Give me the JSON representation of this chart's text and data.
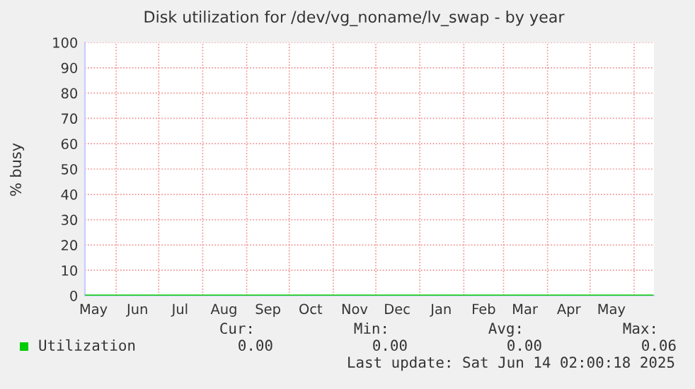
{
  "chart_data": {
    "type": "line",
    "title": "Disk utilization for /dev/vg_noname/lv_swap - by year",
    "ylabel": "% busy",
    "x": [
      "2024-05-10",
      "2024-08-01",
      "2024-11-01",
      "2025-02-01",
      "2025-05-01",
      "2025-06-14"
    ],
    "series": [
      {
        "name": "Utilization",
        "color": "#00cc00",
        "values": [
          0,
          0,
          0,
          0,
          0,
          0
        ]
      }
    ],
    "xlim": [
      "2024-05-10",
      "2025-06-15"
    ],
    "xticks": [
      {
        "value": "2024-05-16",
        "label": "May"
      },
      {
        "value": "2024-06-16",
        "label": "Jun"
      },
      {
        "value": "2024-07-16",
        "label": "Jul"
      },
      {
        "value": "2024-08-16",
        "label": "Aug"
      },
      {
        "value": "2024-09-16",
        "label": "Sep"
      },
      {
        "value": "2024-10-16",
        "label": "Oct"
      },
      {
        "value": "2024-11-16",
        "label": "Nov"
      },
      {
        "value": "2024-12-16",
        "label": "Dec"
      },
      {
        "value": "2025-01-16",
        "label": "Jan"
      },
      {
        "value": "2025-02-15",
        "label": "Feb"
      },
      {
        "value": "2025-03-16",
        "label": "Mar"
      },
      {
        "value": "2025-04-16",
        "label": "Apr"
      },
      {
        "value": "2025-05-16",
        "label": "May"
      },
      {
        "value": "2024-06-01",
        "label": null
      },
      {
        "value": "2024-07-01",
        "label": null
      },
      {
        "value": "2024-08-01",
        "label": null
      },
      {
        "value": "2024-09-01",
        "label": null
      },
      {
        "value": "2024-10-01",
        "label": null
      },
      {
        "value": "2024-11-01",
        "label": null
      },
      {
        "value": "2024-12-01",
        "label": null
      },
      {
        "value": "2025-01-01",
        "label": null
      },
      {
        "value": "2025-02-01",
        "label": null
      },
      {
        "value": "2025-03-01",
        "label": null
      },
      {
        "value": "2025-04-01",
        "label": null
      },
      {
        "value": "2025-05-01",
        "label": null
      },
      {
        "value": "2025-06-01",
        "label": null
      }
    ],
    "ylim": [
      0,
      100
    ],
    "yticks": [
      0,
      10,
      20,
      30,
      40,
      50,
      60,
      70,
      80,
      90,
      100
    ],
    "grid": true,
    "legend": "bottom left",
    "annotations": [
      "Cur:",
      "Min:",
      "Avg:",
      "Max:",
      "0.00",
      "0.00",
      "0.00",
      "0.06",
      "Last update: Sat Jun 14 02:00:18 2025"
    ]
  }
}
